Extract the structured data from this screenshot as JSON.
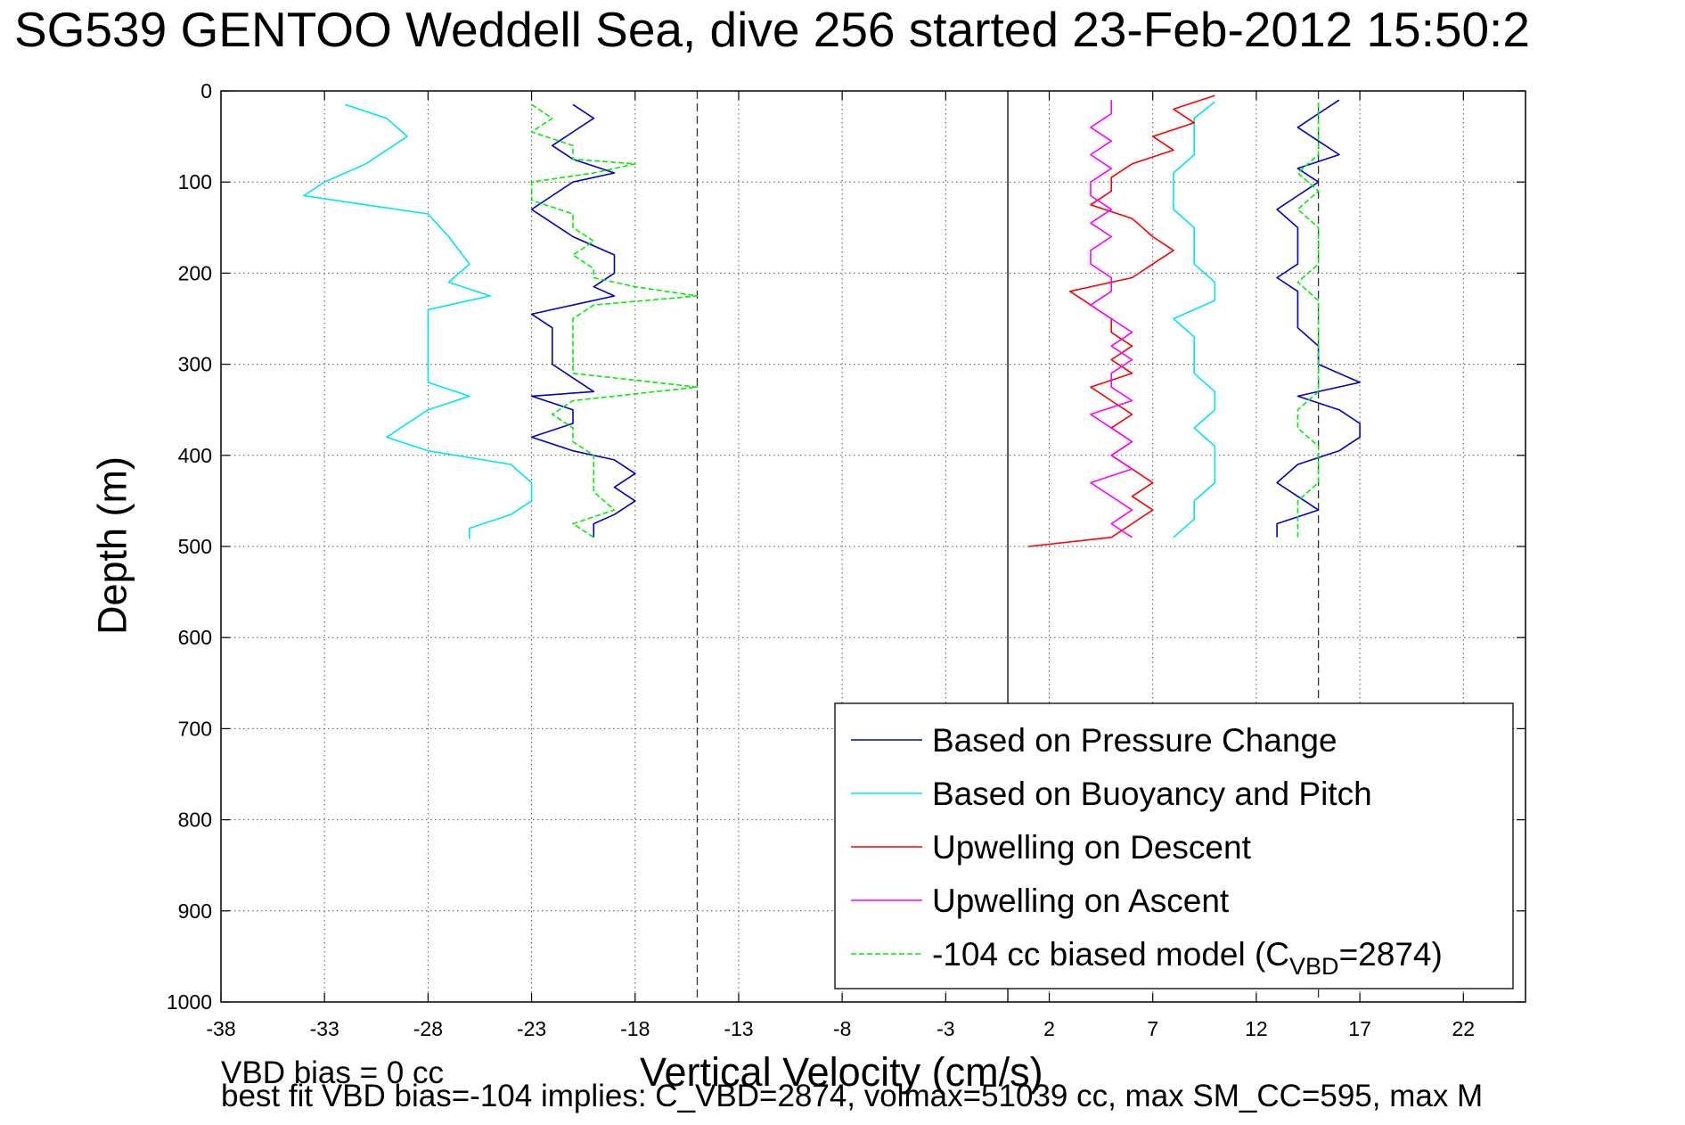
{
  "chart_data": {
    "type": "line",
    "title": "SG539 GENTOO Weddell Sea, dive 256 started 23-Feb-2012 15:50:2",
    "xlabel": "Vertical Velocity (cm/s)",
    "ylabel": "Depth (m)",
    "xlim": [
      -38,
      25
    ],
    "ylim": [
      0,
      1000
    ],
    "y_reversed": true,
    "grid": true,
    "x_ticks": [
      "-38",
      "-33",
      "-28",
      "-23",
      "-18",
      "-13",
      "-8",
      "-3",
      "2",
      "7",
      "12",
      "17",
      "22"
    ],
    "y_ticks": [
      "0",
      "100",
      "200",
      "300",
      "400",
      "500",
      "600",
      "700",
      "800",
      "900",
      "1000"
    ],
    "legend_position": "lower-right",
    "vlines": [
      {
        "x": 0,
        "style": "solid"
      },
      {
        "x": -15,
        "style": "dashed"
      },
      {
        "x": 15,
        "style": "dashed"
      }
    ],
    "series": [
      {
        "name": "Based on Pressure Change",
        "color": "#0000cc",
        "style": "solid",
        "descent": [
          [
            -21,
            15
          ],
          [
            -20,
            30
          ],
          [
            -21,
            45
          ],
          [
            -22,
            60
          ],
          [
            -21,
            75
          ],
          [
            -19,
            90
          ],
          [
            -21,
            100
          ],
          [
            -22,
            115
          ],
          [
            -23,
            130
          ],
          [
            -22,
            145
          ],
          [
            -21,
            160
          ],
          [
            -19,
            180
          ],
          [
            -19,
            200
          ],
          [
            -20,
            215
          ],
          [
            -19,
            225
          ],
          [
            -21,
            235
          ],
          [
            -23,
            245
          ],
          [
            -22,
            260
          ],
          [
            -22,
            280
          ],
          [
            -22,
            300
          ],
          [
            -21,
            315
          ],
          [
            -20,
            330
          ],
          [
            -23,
            335
          ],
          [
            -21,
            350
          ],
          [
            -21,
            365
          ],
          [
            -23,
            380
          ],
          [
            -21,
            395
          ],
          [
            -19,
            405
          ],
          [
            -18,
            420
          ],
          [
            -19,
            435
          ],
          [
            -18,
            450
          ],
          [
            -19,
            465
          ],
          [
            -20,
            475
          ],
          [
            -20,
            490
          ]
        ],
        "ascent": [
          [
            13,
            490
          ],
          [
            13,
            475
          ],
          [
            15,
            460
          ],
          [
            14,
            445
          ],
          [
            13,
            430
          ],
          [
            14,
            410
          ],
          [
            16,
            395
          ],
          [
            17,
            380
          ],
          [
            17,
            365
          ],
          [
            16,
            350
          ],
          [
            14,
            335
          ],
          [
            17,
            320
          ],
          [
            15,
            300
          ],
          [
            15,
            280
          ],
          [
            14,
            260
          ],
          [
            14,
            240
          ],
          [
            14,
            220
          ],
          [
            13,
            205
          ],
          [
            14,
            190
          ],
          [
            14,
            170
          ],
          [
            14,
            150
          ],
          [
            13,
            130
          ],
          [
            14,
            115
          ],
          [
            15,
            100
          ],
          [
            14,
            85
          ],
          [
            16,
            70
          ],
          [
            15,
            55
          ],
          [
            14,
            40
          ],
          [
            15,
            25
          ],
          [
            16,
            10
          ]
        ]
      },
      {
        "name": "Based on Buoyancy and Pitch",
        "color": "#00e5ee",
        "style": "solid",
        "descent": [
          [
            -32,
            15
          ],
          [
            -30,
            30
          ],
          [
            -29,
            50
          ],
          [
            -30,
            65
          ],
          [
            -31,
            80
          ],
          [
            -33,
            100
          ],
          [
            -34,
            115
          ],
          [
            -31,
            125
          ],
          [
            -28,
            135
          ],
          [
            -27,
            160
          ],
          [
            -26,
            190
          ],
          [
            -27,
            210
          ],
          [
            -25,
            225
          ],
          [
            -28,
            240
          ],
          [
            -28,
            260
          ],
          [
            -28,
            280
          ],
          [
            -28,
            300
          ],
          [
            -28,
            320
          ],
          [
            -26,
            335
          ],
          [
            -28,
            350
          ],
          [
            -29,
            365
          ],
          [
            -30,
            380
          ],
          [
            -28,
            395
          ],
          [
            -24,
            410
          ],
          [
            -23,
            430
          ],
          [
            -23,
            450
          ],
          [
            -24,
            465
          ],
          [
            -26,
            480
          ],
          [
            -26,
            492
          ]
        ],
        "ascent": [
          [
            8,
            490
          ],
          [
            9,
            470
          ],
          [
            9,
            450
          ],
          [
            10,
            430
          ],
          [
            10,
            410
          ],
          [
            10,
            390
          ],
          [
            9,
            370
          ],
          [
            10,
            350
          ],
          [
            10,
            330
          ],
          [
            9,
            310
          ],
          [
            9,
            290
          ],
          [
            9,
            270
          ],
          [
            8,
            250
          ],
          [
            10,
            230
          ],
          [
            10,
            210
          ],
          [
            9,
            190
          ],
          [
            9,
            170
          ],
          [
            9,
            150
          ],
          [
            8,
            130
          ],
          [
            8,
            110
          ],
          [
            8,
            90
          ],
          [
            9,
            70
          ],
          [
            9,
            50
          ],
          [
            9,
            30
          ],
          [
            10,
            12
          ]
        ]
      },
      {
        "name": "Upwelling on Descent",
        "color": "#ff0000",
        "style": "solid",
        "descent": [
          [
            10,
            5
          ],
          [
            8,
            20
          ],
          [
            9,
            35
          ],
          [
            7,
            50
          ],
          [
            8,
            65
          ],
          [
            6,
            80
          ],
          [
            5,
            95
          ],
          [
            5,
            110
          ],
          [
            4,
            125
          ],
          [
            6,
            140
          ],
          [
            7,
            160
          ],
          [
            8,
            175
          ],
          [
            7,
            190
          ],
          [
            6,
            205
          ],
          [
            3,
            220
          ],
          [
            4,
            235
          ],
          [
            5,
            250
          ],
          [
            5,
            265
          ],
          [
            6,
            280
          ],
          [
            5,
            295
          ],
          [
            6,
            310
          ],
          [
            4,
            325
          ],
          [
            5,
            340
          ],
          [
            6,
            355
          ],
          [
            5,
            370
          ],
          [
            6,
            385
          ],
          [
            5,
            400
          ],
          [
            6,
            415
          ],
          [
            7,
            430
          ],
          [
            6,
            445
          ],
          [
            7,
            460
          ],
          [
            6,
            475
          ],
          [
            5,
            490
          ],
          [
            1,
            500
          ]
        ]
      },
      {
        "name": "Upwelling on Ascent",
        "color": "#ff00ff",
        "style": "solid",
        "ascent": [
          [
            6,
            490
          ],
          [
            5,
            475
          ],
          [
            6,
            460
          ],
          [
            5,
            445
          ],
          [
            4,
            430
          ],
          [
            6,
            415
          ],
          [
            5,
            400
          ],
          [
            6,
            385
          ],
          [
            5,
            370
          ],
          [
            4,
            355
          ],
          [
            6,
            340
          ],
          [
            5,
            325
          ],
          [
            5,
            310
          ],
          [
            6,
            295
          ],
          [
            5,
            280
          ],
          [
            6,
            265
          ],
          [
            5,
            250
          ],
          [
            4,
            235
          ],
          [
            5,
            220
          ],
          [
            5,
            205
          ],
          [
            4,
            190
          ],
          [
            4,
            175
          ],
          [
            5,
            160
          ],
          [
            4,
            145
          ],
          [
            5,
            130
          ],
          [
            4,
            115
          ],
          [
            4,
            100
          ],
          [
            5,
            85
          ],
          [
            4,
            70
          ],
          [
            5,
            55
          ],
          [
            4,
            40
          ],
          [
            5,
            25
          ],
          [
            5,
            10
          ]
        ]
      },
      {
        "name": "-104 cc biased model (C",
        "name_sub": "VBD",
        "name_suffix": "=2874)",
        "color": "#00ee00",
        "style": "dashed",
        "descent": [
          [
            -23,
            15
          ],
          [
            -22,
            30
          ],
          [
            -23,
            45
          ],
          [
            -21,
            60
          ],
          [
            -21,
            75
          ],
          [
            -18,
            80
          ],
          [
            -20,
            90
          ],
          [
            -23,
            100
          ],
          [
            -23,
            120
          ],
          [
            -21,
            135
          ],
          [
            -21,
            150
          ],
          [
            -20,
            165
          ],
          [
            -21,
            180
          ],
          [
            -20,
            195
          ],
          [
            -20,
            205
          ],
          [
            -18,
            215
          ],
          [
            -15,
            225
          ],
          [
            -20,
            235
          ],
          [
            -21,
            250
          ],
          [
            -21,
            270
          ],
          [
            -21,
            290
          ],
          [
            -21,
            310
          ],
          [
            -15,
            325
          ],
          [
            -21,
            340
          ],
          [
            -22,
            355
          ],
          [
            -21,
            370
          ],
          [
            -21,
            385
          ],
          [
            -20,
            400
          ],
          [
            -20,
            420
          ],
          [
            -20,
            440
          ],
          [
            -19,
            460
          ],
          [
            -21,
            475
          ],
          [
            -20,
            490
          ]
        ],
        "ascent": [
          [
            14,
            490
          ],
          [
            14,
            470
          ],
          [
            14,
            450
          ],
          [
            15,
            430
          ],
          [
            15,
            410
          ],
          [
            15,
            390
          ],
          [
            14,
            370
          ],
          [
            14,
            350
          ],
          [
            15,
            330
          ],
          [
            15,
            310
          ],
          [
            15,
            290
          ],
          [
            15,
            270
          ],
          [
            15,
            250
          ],
          [
            15,
            230
          ],
          [
            14,
            210
          ],
          [
            15,
            190
          ],
          [
            15,
            170
          ],
          [
            15,
            150
          ],
          [
            14,
            130
          ],
          [
            15,
            110
          ],
          [
            14,
            90
          ],
          [
            15,
            70
          ],
          [
            15,
            50
          ],
          [
            15,
            30
          ],
          [
            15,
            10
          ]
        ]
      }
    ]
  },
  "notes": {
    "line1": "VBD bias = 0 cc",
    "line2": "best fit VBD bias=-104 implies: C_VBD=2874, volmax=51039 cc, max SM_CC=595, max M"
  }
}
